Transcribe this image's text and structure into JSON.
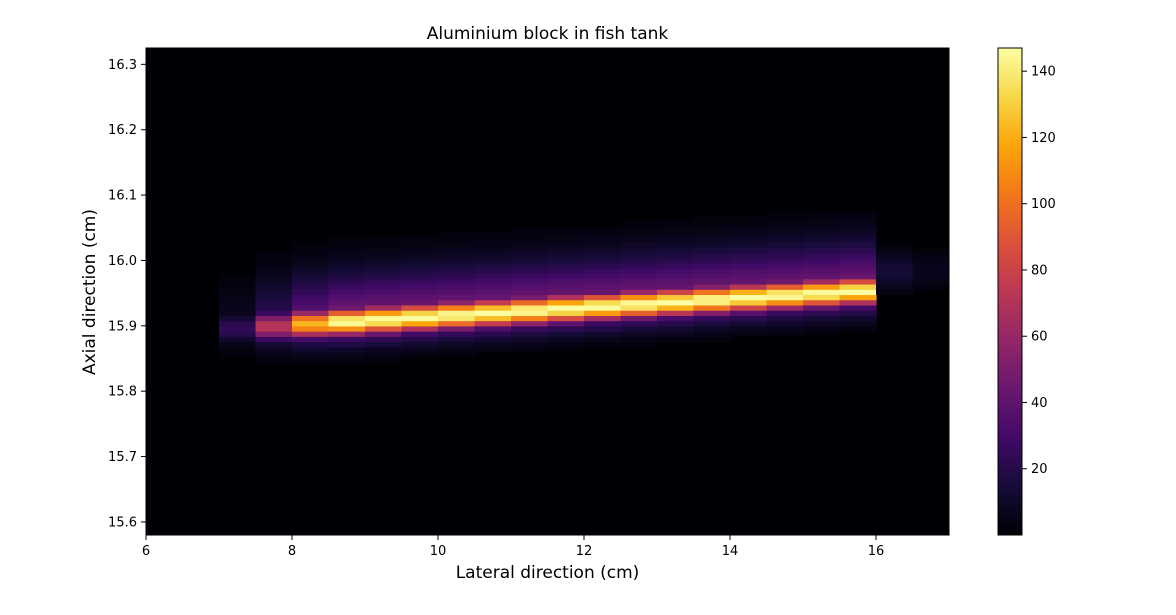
{
  "chart_data": {
    "type": "heatmap",
    "title": "Aluminium block in fish tank",
    "xlabel": "Lateral direction (cm)",
    "ylabel": "Axial direction (cm)",
    "xlim": [
      6,
      17
    ],
    "ylim": [
      15.58,
      16.325
    ],
    "x_ticks": [
      6,
      8,
      10,
      12,
      14,
      16
    ],
    "y_ticks": [
      15.6,
      15.7,
      15.8,
      15.9,
      16.0,
      16.1,
      16.2,
      16.3
    ],
    "colormap": "inferno",
    "colorbar": {
      "min": 0,
      "max": 147,
      "ticks": [
        20,
        40,
        60,
        80,
        100,
        120,
        140
      ]
    },
    "band": {
      "x_start": 7.0,
      "x_end": 16.0,
      "axial_at_x_start": 15.895,
      "axial_at_x_end": 15.955,
      "peak_intensity": 147,
      "halo_x_start": 7.0,
      "halo_x_end": 17.0
    },
    "grid": false
  }
}
